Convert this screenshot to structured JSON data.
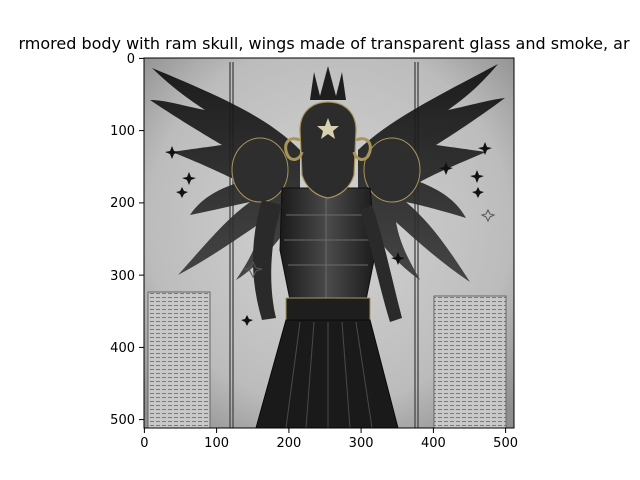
{
  "figure": {
    "title": "rmored body with ram skull,  wings made of transparent glass and smoke,  ar",
    "image_subject": "armored winged figure with ram skull helmet, stars and text panels"
  },
  "axes": {
    "x_ticks": [
      "0",
      "100",
      "200",
      "300",
      "400",
      "500"
    ],
    "y_ticks": [
      "0",
      "100",
      "200",
      "300",
      "400",
      "500"
    ],
    "xlim": [
      0,
      512
    ],
    "ylim": [
      512,
      0
    ]
  },
  "colors": {
    "background": "#ffffff",
    "axis": "#000000",
    "image_paper": "#bdbdbd",
    "image_dark": "#1c1c1c",
    "armor": "#2a2a2a",
    "gold": "#a8955a"
  }
}
